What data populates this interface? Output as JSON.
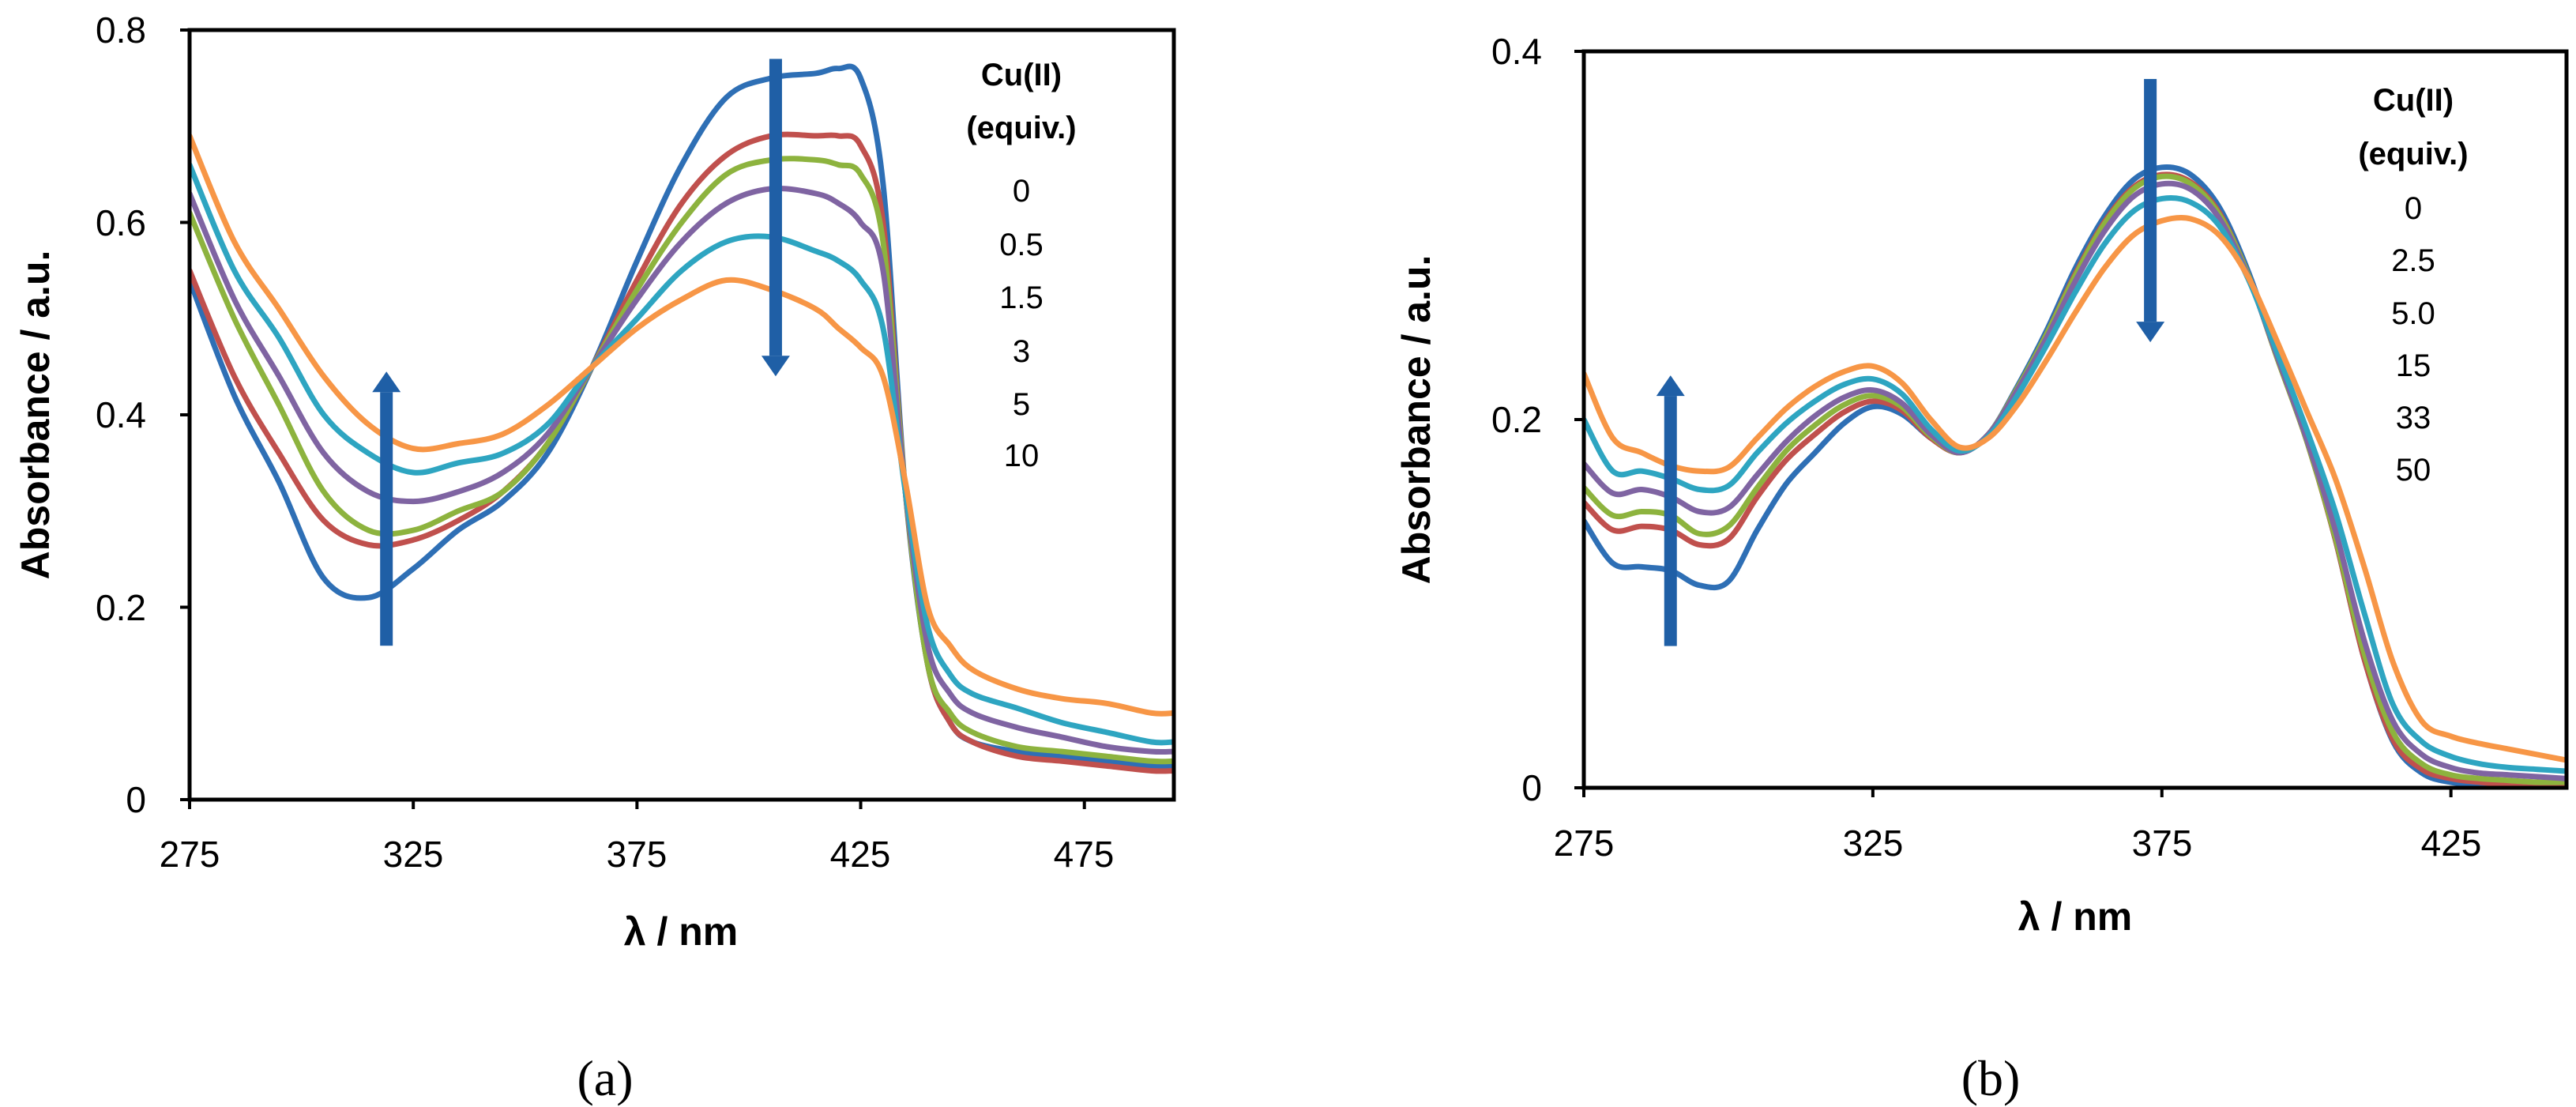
{
  "chart_data": [
    {
      "id": "a",
      "type": "line",
      "caption": "(a)",
      "xlabel": "λ / nm",
      "ylabel": "Absorbance / a.u.",
      "xlim": [
        275,
        495
      ],
      "ylim": [
        0,
        0.8
      ],
      "xticks": [
        "275",
        "325",
        "375",
        "425",
        "475"
      ],
      "xtick_values": [
        275,
        325,
        375,
        425,
        475
      ],
      "yticks": [
        "0",
        "0.2",
        "0.4",
        "0.6",
        "0.8"
      ],
      "ytick_values": [
        0,
        0.2,
        0.4,
        0.6,
        0.8
      ],
      "legend_title": [
        "Cu(II)",
        "(equiv.)"
      ],
      "x": [
        275,
        285,
        295,
        305,
        315,
        325,
        335,
        345,
        355,
        365,
        375,
        385,
        395,
        405,
        415,
        420,
        425,
        430,
        435,
        440,
        445,
        450,
        460,
        470,
        480,
        490,
        495
      ],
      "series": [
        {
          "name": "0",
          "color": "#2e6fb5",
          "values": [
            0.54,
            0.42,
            0.33,
            0.23,
            0.21,
            0.24,
            0.28,
            0.31,
            0.36,
            0.45,
            0.56,
            0.66,
            0.73,
            0.75,
            0.755,
            0.76,
            0.75,
            0.64,
            0.32,
            0.14,
            0.08,
            0.06,
            0.05,
            0.045,
            0.04,
            0.035,
            0.035
          ]
        },
        {
          "name": "0.5",
          "color": "#c0504d",
          "values": [
            0.55,
            0.44,
            0.36,
            0.29,
            0.265,
            0.27,
            0.29,
            0.32,
            0.37,
            0.45,
            0.54,
            0.62,
            0.67,
            0.69,
            0.69,
            0.69,
            0.68,
            0.6,
            0.32,
            0.14,
            0.08,
            0.06,
            0.045,
            0.04,
            0.035,
            0.03,
            0.03
          ]
        },
        {
          "name": "1.5",
          "color": "#8db33e",
          "values": [
            0.61,
            0.5,
            0.41,
            0.32,
            0.28,
            0.28,
            0.3,
            0.32,
            0.37,
            0.45,
            0.53,
            0.6,
            0.65,
            0.665,
            0.665,
            0.66,
            0.65,
            0.58,
            0.32,
            0.14,
            0.09,
            0.07,
            0.055,
            0.05,
            0.045,
            0.04,
            0.04
          ]
        },
        {
          "name": "3",
          "color": "#7f64a2",
          "values": [
            0.63,
            0.52,
            0.44,
            0.36,
            0.32,
            0.31,
            0.32,
            0.34,
            0.38,
            0.45,
            0.52,
            0.58,
            0.62,
            0.635,
            0.63,
            0.62,
            0.6,
            0.55,
            0.32,
            0.16,
            0.11,
            0.09,
            0.075,
            0.065,
            0.055,
            0.05,
            0.05
          ]
        },
        {
          "name": "5",
          "color": "#2ea5c1",
          "values": [
            0.66,
            0.55,
            0.48,
            0.4,
            0.36,
            0.34,
            0.35,
            0.36,
            0.39,
            0.45,
            0.5,
            0.55,
            0.58,
            0.585,
            0.57,
            0.56,
            0.54,
            0.49,
            0.32,
            0.18,
            0.13,
            0.11,
            0.095,
            0.08,
            0.07,
            0.06,
            0.06
          ]
        },
        {
          "name": "10",
          "color": "#f79646",
          "values": [
            0.69,
            0.58,
            0.51,
            0.44,
            0.39,
            0.365,
            0.37,
            0.38,
            0.41,
            0.45,
            0.49,
            0.52,
            0.54,
            0.53,
            0.51,
            0.49,
            0.47,
            0.44,
            0.33,
            0.2,
            0.16,
            0.135,
            0.115,
            0.105,
            0.1,
            0.09,
            0.09
          ]
        }
      ],
      "arrows": [
        {
          "x": 319,
          "from": 0.16,
          "to": 0.445,
          "direction": "up"
        },
        {
          "x": 406,
          "from": 0.77,
          "to": 0.44,
          "direction": "down"
        }
      ]
    },
    {
      "id": "b",
      "type": "line",
      "caption": "(b)",
      "xlabel": "λ / nm",
      "ylabel": "Absorbance / a.u.",
      "xlim": [
        275,
        445
      ],
      "ylim": [
        0,
        0.4
      ],
      "xticks": [
        "275",
        "325",
        "375",
        "425"
      ],
      "xtick_values": [
        275,
        325,
        375,
        425
      ],
      "yticks": [
        "0",
        "0.2",
        "0.4"
      ],
      "ytick_values": [
        0,
        0.2,
        0.4
      ],
      "legend_title": [
        "Cu(II)",
        "(equiv.)"
      ],
      "x": [
        275,
        280,
        285,
        290,
        295,
        300,
        305,
        310,
        315,
        320,
        325,
        330,
        335,
        340,
        345,
        350,
        355,
        360,
        365,
        370,
        375,
        380,
        385,
        390,
        395,
        400,
        405,
        410,
        415,
        420,
        425,
        430,
        435,
        440,
        445
      ],
      "series": [
        {
          "name": "0",
          "color": "#2e6fb5",
          "values": [
            0.145,
            0.122,
            0.12,
            0.118,
            0.11,
            0.112,
            0.14,
            0.165,
            0.182,
            0.198,
            0.207,
            0.203,
            0.19,
            0.182,
            0.192,
            0.218,
            0.248,
            0.282,
            0.31,
            0.33,
            0.337,
            0.333,
            0.315,
            0.28,
            0.235,
            0.19,
            0.135,
            0.07,
            0.025,
            0.008,
            0.003,
            0.002,
            0.001,
            0.001,
            0.001
          ]
        },
        {
          "name": "2.5",
          "color": "#c0504d",
          "values": [
            0.155,
            0.14,
            0.142,
            0.14,
            0.132,
            0.135,
            0.158,
            0.178,
            0.192,
            0.204,
            0.21,
            0.205,
            0.19,
            0.182,
            0.192,
            0.217,
            0.246,
            0.279,
            0.307,
            0.326,
            0.333,
            0.329,
            0.312,
            0.278,
            0.233,
            0.189,
            0.135,
            0.07,
            0.026,
            0.01,
            0.005,
            0.003,
            0.002,
            0.002,
            0.002
          ]
        },
        {
          "name": "5.0",
          "color": "#8db33e",
          "values": [
            0.163,
            0.148,
            0.15,
            0.148,
            0.138,
            0.142,
            0.163,
            0.183,
            0.197,
            0.208,
            0.213,
            0.207,
            0.191,
            0.182,
            0.192,
            0.217,
            0.246,
            0.278,
            0.306,
            0.325,
            0.332,
            0.328,
            0.311,
            0.278,
            0.233,
            0.189,
            0.136,
            0.073,
            0.03,
            0.013,
            0.007,
            0.005,
            0.004,
            0.003,
            0.003
          ]
        },
        {
          "name": "15",
          "color": "#7f64a2",
          "values": [
            0.176,
            0.16,
            0.162,
            0.158,
            0.15,
            0.152,
            0.17,
            0.188,
            0.202,
            0.212,
            0.216,
            0.209,
            0.192,
            0.182,
            0.192,
            0.216,
            0.244,
            0.275,
            0.302,
            0.321,
            0.328,
            0.325,
            0.309,
            0.277,
            0.234,
            0.19,
            0.14,
            0.08,
            0.036,
            0.018,
            0.011,
            0.008,
            0.007,
            0.006,
            0.005
          ]
        },
        {
          "name": "33",
          "color": "#2ea5c1",
          "values": [
            0.2,
            0.172,
            0.172,
            0.168,
            0.162,
            0.164,
            0.182,
            0.198,
            0.21,
            0.219,
            0.222,
            0.214,
            0.195,
            0.183,
            0.191,
            0.213,
            0.24,
            0.269,
            0.295,
            0.313,
            0.32,
            0.318,
            0.305,
            0.276,
            0.236,
            0.195,
            0.15,
            0.095,
            0.045,
            0.025,
            0.017,
            0.013,
            0.011,
            0.01,
            0.009
          ]
        },
        {
          "name": "50",
          "color": "#f79646",
          "values": [
            0.225,
            0.19,
            0.182,
            0.175,
            0.172,
            0.174,
            0.19,
            0.206,
            0.218,
            0.226,
            0.229,
            0.22,
            0.2,
            0.185,
            0.19,
            0.208,
            0.232,
            0.258,
            0.282,
            0.3,
            0.308,
            0.309,
            0.3,
            0.277,
            0.242,
            0.205,
            0.168,
            0.12,
            0.068,
            0.036,
            0.028,
            0.024,
            0.021,
            0.018,
            0.015
          ]
        }
      ],
      "arrows": [
        {
          "x": 290,
          "from": 0.077,
          "to": 0.224,
          "direction": "up"
        },
        {
          "x": 373,
          "from": 0.385,
          "to": 0.242,
          "direction": "down"
        }
      ]
    }
  ]
}
